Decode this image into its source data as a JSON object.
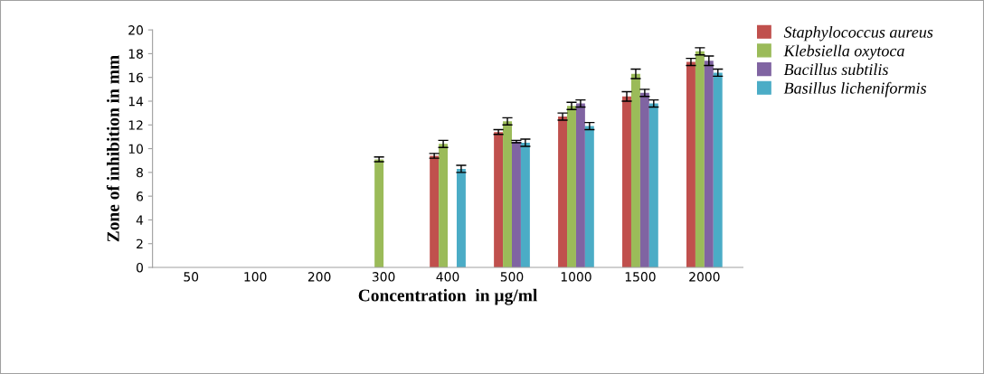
{
  "chart_data": {
    "type": "bar",
    "xlabel": "Concentration  in µg/ml",
    "ylabel": "Zone of inhibition in mm",
    "categories": [
      "50",
      "100",
      "200",
      "300",
      "400",
      "500",
      "1000",
      "1500",
      "2000"
    ],
    "series": [
      {
        "name": "Staphylococcus aureus",
        "color": "#c0504d",
        "values": [
          null,
          null,
          null,
          null,
          9.4,
          11.4,
          12.7,
          14.4,
          17.3
        ],
        "errors": [
          null,
          null,
          null,
          null,
          0.2,
          0.2,
          0.3,
          0.4,
          0.3
        ]
      },
      {
        "name": "Klebsiella oxytoca",
        "color": "#9bbb59",
        "values": [
          null,
          null,
          null,
          9.1,
          10.4,
          12.3,
          13.6,
          16.3,
          18.2
        ],
        "errors": [
          null,
          null,
          null,
          0.2,
          0.3,
          0.3,
          0.3,
          0.4,
          0.3
        ]
      },
      {
        "name": "Bacillus subtilis",
        "color": "#8064a2",
        "values": [
          null,
          null,
          null,
          null,
          null,
          10.6,
          13.8,
          14.7,
          17.4
        ],
        "errors": [
          null,
          null,
          null,
          null,
          null,
          0.1,
          0.3,
          0.3,
          0.4
        ]
      },
      {
        "name": "Basillus licheniformis",
        "color": "#4bacc6",
        "values": [
          null,
          null,
          null,
          null,
          8.3,
          10.5,
          11.9,
          13.8,
          16.4
        ],
        "errors": [
          null,
          null,
          null,
          null,
          0.3,
          0.3,
          0.3,
          0.3,
          0.3
        ]
      }
    ],
    "ylim": [
      0,
      20
    ],
    "yticks": [
      0,
      2,
      4,
      6,
      8,
      10,
      12,
      14,
      16,
      18,
      20
    ],
    "grid": false,
    "legend": "top right"
  }
}
